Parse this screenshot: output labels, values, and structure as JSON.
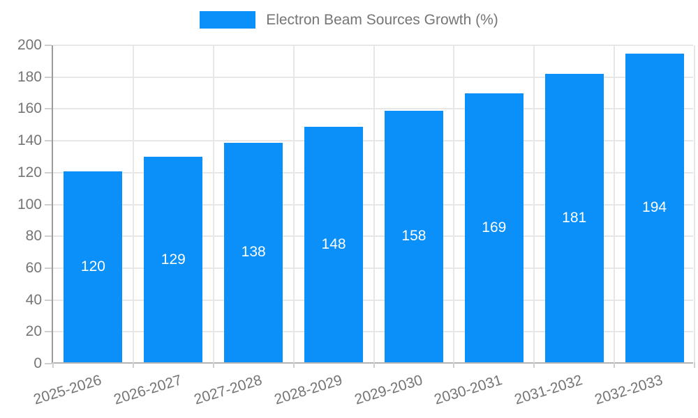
{
  "legend": {
    "label": "Electron Beam Sources Growth (%)"
  },
  "colors": {
    "bar": "#0a90f8",
    "text": "#757575",
    "bar_label": "#ffffff",
    "gridline": "#e7e7e7",
    "y_axis_line": "#9a9a9a",
    "x_axis_line": "#b3b3b3",
    "tick": "#cfcfcf"
  },
  "chart_data": {
    "type": "bar",
    "title": "",
    "xlabel": "",
    "ylabel": "",
    "series_name": "Electron Beam Sources Growth (%)",
    "categories": [
      "2025-2026",
      "2026-2027",
      "2027-2028",
      "2028-2029",
      "2029-2030",
      "2030-2031",
      "2031-2032",
      "2032-2033"
    ],
    "values": [
      120,
      129,
      138,
      148,
      158,
      169,
      181,
      194
    ],
    "ylim": [
      0,
      200
    ],
    "ytick_step": 20,
    "ytick_labels": [
      "0",
      "20",
      "40",
      "60",
      "80",
      "100",
      "120",
      "140",
      "160",
      "180",
      "200"
    ],
    "grid": true,
    "legend_position": "top-center",
    "bar_labels_shown": true,
    "bar_label_position": "center"
  }
}
